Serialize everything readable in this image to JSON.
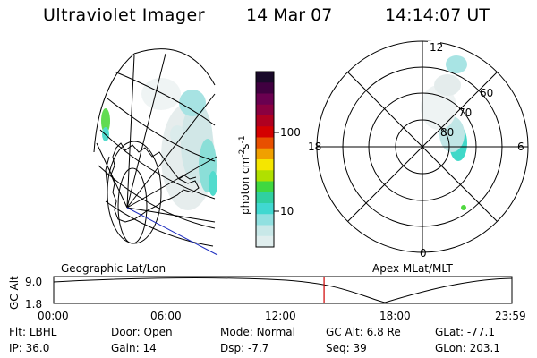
{
  "header": {
    "title": "Ultraviolet Imager",
    "date": "14 Mar 07",
    "time": "14:14:07 UT"
  },
  "colorbar": {
    "unit": "photon cm",
    "unit_exp1": "-2",
    "unit_s": "s",
    "unit_exp2": "-1",
    "ticks": [
      "100",
      "10"
    ],
    "colors": [
      "#1a0a2a",
      "#400040",
      "#6a0050",
      "#8a0040",
      "#b00020",
      "#d40000",
      "#e85000",
      "#f0a000",
      "#f5e600",
      "#b0e000",
      "#40d840",
      "#30d0a0",
      "#40d8d0",
      "#90e0e0",
      "#c8e8e8",
      "#e0eeee"
    ]
  },
  "left_map": {
    "label": "Geographic Lat/Lon"
  },
  "right_map": {
    "label": "Apex MLat/MLT",
    "mlt_labels": {
      "top": "12",
      "left": "18",
      "right": "6",
      "bottom": "0"
    },
    "lat_labels": [
      "60",
      "70",
      "80"
    ]
  },
  "altitude_plot": {
    "ylabel": "GC Alt",
    "yticks": [
      "9.0",
      "1.8"
    ],
    "xticks": [
      "00:00",
      "06:00",
      "12:00",
      "18:00",
      "23:59"
    ],
    "current_time_fraction": 0.59
  },
  "info": {
    "row1": [
      {
        "label": "Flt:",
        "value": "LBHL"
      },
      {
        "label": "Door:",
        "value": "Open"
      },
      {
        "label": "Mode:",
        "value": "Normal"
      },
      {
        "label": "GC Alt:",
        "value": "6.8 Re"
      },
      {
        "label": "GLat:",
        "value": "-77.1"
      }
    ],
    "row2": [
      {
        "label": "IP:",
        "value": "36.0"
      },
      {
        "label": "Gain:",
        "value": "14"
      },
      {
        "label": "Dsp:",
        "value": "-7.7"
      },
      {
        "label": "Seq:",
        "value": "39"
      },
      {
        "label": "GLon:",
        "value": "203.1"
      }
    ]
  }
}
